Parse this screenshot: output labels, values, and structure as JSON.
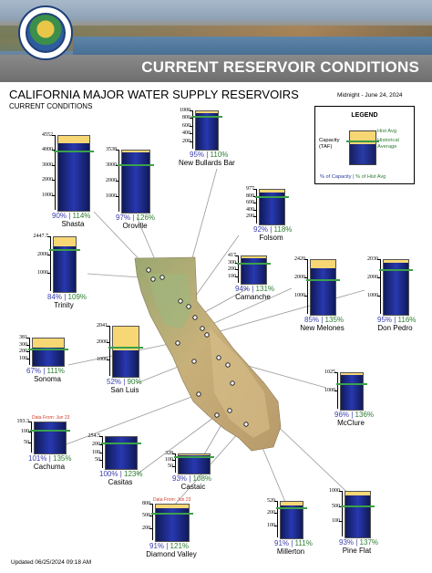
{
  "header": {
    "banner_title": "CURRENT RESERVOIR CONDITIONS",
    "title": "CALIFORNIA MAJOR WATER SUPPLY RESERVOIRS",
    "subtitle": "CURRENT CONDITIONS",
    "date": "Midnight - June 24, 2024",
    "seal_text": "DEPARTMENT OF WATER RESOURCES STATE OF CALIFORNIA"
  },
  "legend": {
    "title": "LEGEND",
    "hist_avg": "Hist Avg",
    "historical_average": "Historical Average",
    "capacity": "Capacity (TAF)",
    "pct_capacity": "% of Capacity",
    "pct_hist": "% of Hist Avg"
  },
  "footer": {
    "updated": "Updated 06/25/2024 09:18 AM"
  },
  "colors": {
    "storage": "#2838b0",
    "capacity": "#f7d774",
    "hist_avg": "#3aa04a",
    "pct_capacity": "#3b3fae",
    "pct_hist": "#2e7d32",
    "note": "#d23c2a"
  },
  "reservoirs": [
    {
      "id": "shasta",
      "name": "Shasta",
      "capacity": "4552",
      "ticks": [
        "4000",
        "3000",
        "2000",
        "1000"
      ],
      "fill_pct": 90,
      "avg_pct": 79,
      "pct_capacity": "90%",
      "pct_hist": "114%",
      "note": ""
    },
    {
      "id": "oroville",
      "name": "Oroville",
      "capacity": "3538",
      "ticks": [
        "3000",
        "2000",
        "1000"
      ],
      "fill_pct": 97,
      "avg_pct": 77,
      "pct_capacity": "97%",
      "pct_hist": "126%",
      "note": ""
    },
    {
      "id": "new-bullards-bar",
      "name": "New Bullards Bar",
      "capacity": "",
      "ticks": [
        "1000",
        "800",
        "600",
        "400",
        "200"
      ],
      "fill_pct": 95,
      "avg_pct": 86,
      "pct_capacity": "95%",
      "pct_hist": "110%",
      "note": ""
    },
    {
      "id": "folsom",
      "name": "Folsom",
      "capacity": "977",
      "ticks": [
        "800",
        "600",
        "400",
        "200"
      ],
      "fill_pct": 92,
      "avg_pct": 78,
      "pct_capacity": "92%",
      "pct_hist": "118%",
      "note": ""
    },
    {
      "id": "trinity",
      "name": "Trinity",
      "capacity": "2447.7",
      "ticks": [
        "2000",
        "1000"
      ],
      "fill_pct": 84,
      "avg_pct": 77,
      "pct_capacity": "84%",
      "pct_hist": "109%",
      "note": ""
    },
    {
      "id": "camanche",
      "name": "Camanche",
      "capacity": "417",
      "ticks": [
        "300",
        "200",
        "100"
      ],
      "fill_pct": 94,
      "avg_pct": 72,
      "pct_capacity": "94%",
      "pct_hist": "131%",
      "note": ""
    },
    {
      "id": "new-melones",
      "name": "New Melones",
      "capacity": "2420",
      "ticks": [
        "2000",
        "1000"
      ],
      "fill_pct": 85,
      "avg_pct": 63,
      "pct_capacity": "85%",
      "pct_hist": "135%",
      "note": ""
    },
    {
      "id": "don-pedro",
      "name": "Don Pedro",
      "capacity": "2030",
      "ticks": [
        "2000",
        "1000"
      ],
      "fill_pct": 95,
      "avg_pct": 82,
      "pct_capacity": "95%",
      "pct_hist": "116%",
      "note": ""
    },
    {
      "id": "sonoma",
      "name": "Sonoma",
      "capacity": "381",
      "ticks": [
        "300",
        "200",
        "100"
      ],
      "fill_pct": 67,
      "avg_pct": 60,
      "pct_capacity": "67%",
      "pct_hist": "111%",
      "note": ""
    },
    {
      "id": "san-luis",
      "name": "San Luis",
      "capacity": "2041",
      "ticks": [
        "2000",
        "1000"
      ],
      "fill_pct": 52,
      "avg_pct": 58,
      "pct_capacity": "52%",
      "pct_hist": "90%",
      "note": ""
    },
    {
      "id": "mcclure",
      "name": "McClure",
      "capacity": "1025",
      "ticks": [
        "1000"
      ],
      "fill_pct": 96,
      "avg_pct": 71,
      "pct_capacity": "96%",
      "pct_hist": "136%",
      "note": ""
    },
    {
      "id": "cachuma",
      "name": "Cachuma",
      "capacity": "193.3",
      "ticks": [
        "100",
        "50"
      ],
      "fill_pct": 101,
      "avg_pct": 75,
      "pct_capacity": "101%",
      "pct_hist": "135%",
      "note": "Data From: Jun 23"
    },
    {
      "id": "casitas",
      "name": "Casitas",
      "capacity": "254.5",
      "ticks": [
        "200",
        "100",
        "50"
      ],
      "fill_pct": 100,
      "avg_pct": 81,
      "pct_capacity": "100%",
      "pct_hist": "123%",
      "note": ""
    },
    {
      "id": "castaic",
      "name": "Castaic",
      "capacity": "328",
      "ticks": [
        "100",
        "50"
      ],
      "fill_pct": 93,
      "avg_pct": 86,
      "pct_capacity": "93%",
      "pct_hist": "108%",
      "note": ""
    },
    {
      "id": "diamond-valley",
      "name": "Diamond Valley",
      "capacity": "800",
      "ticks": [
        "500",
        "200"
      ],
      "fill_pct": 91,
      "avg_pct": 75,
      "pct_capacity": "91%",
      "pct_hist": "121%",
      "note": "Data From: Jun 23"
    },
    {
      "id": "millerton",
      "name": "Millerton",
      "capacity": "520",
      "ticks": [
        "200",
        "100"
      ],
      "fill_pct": 91,
      "avg_pct": 82,
      "pct_capacity": "91%",
      "pct_hist": "111%",
      "note": ""
    },
    {
      "id": "pine-flat",
      "name": "Pine Flat",
      "capacity": "1000",
      "ticks": [
        "500",
        "100"
      ],
      "fill_pct": 93,
      "avg_pct": 68,
      "pct_capacity": "93%",
      "pct_hist": "137%",
      "note": ""
    }
  ]
}
